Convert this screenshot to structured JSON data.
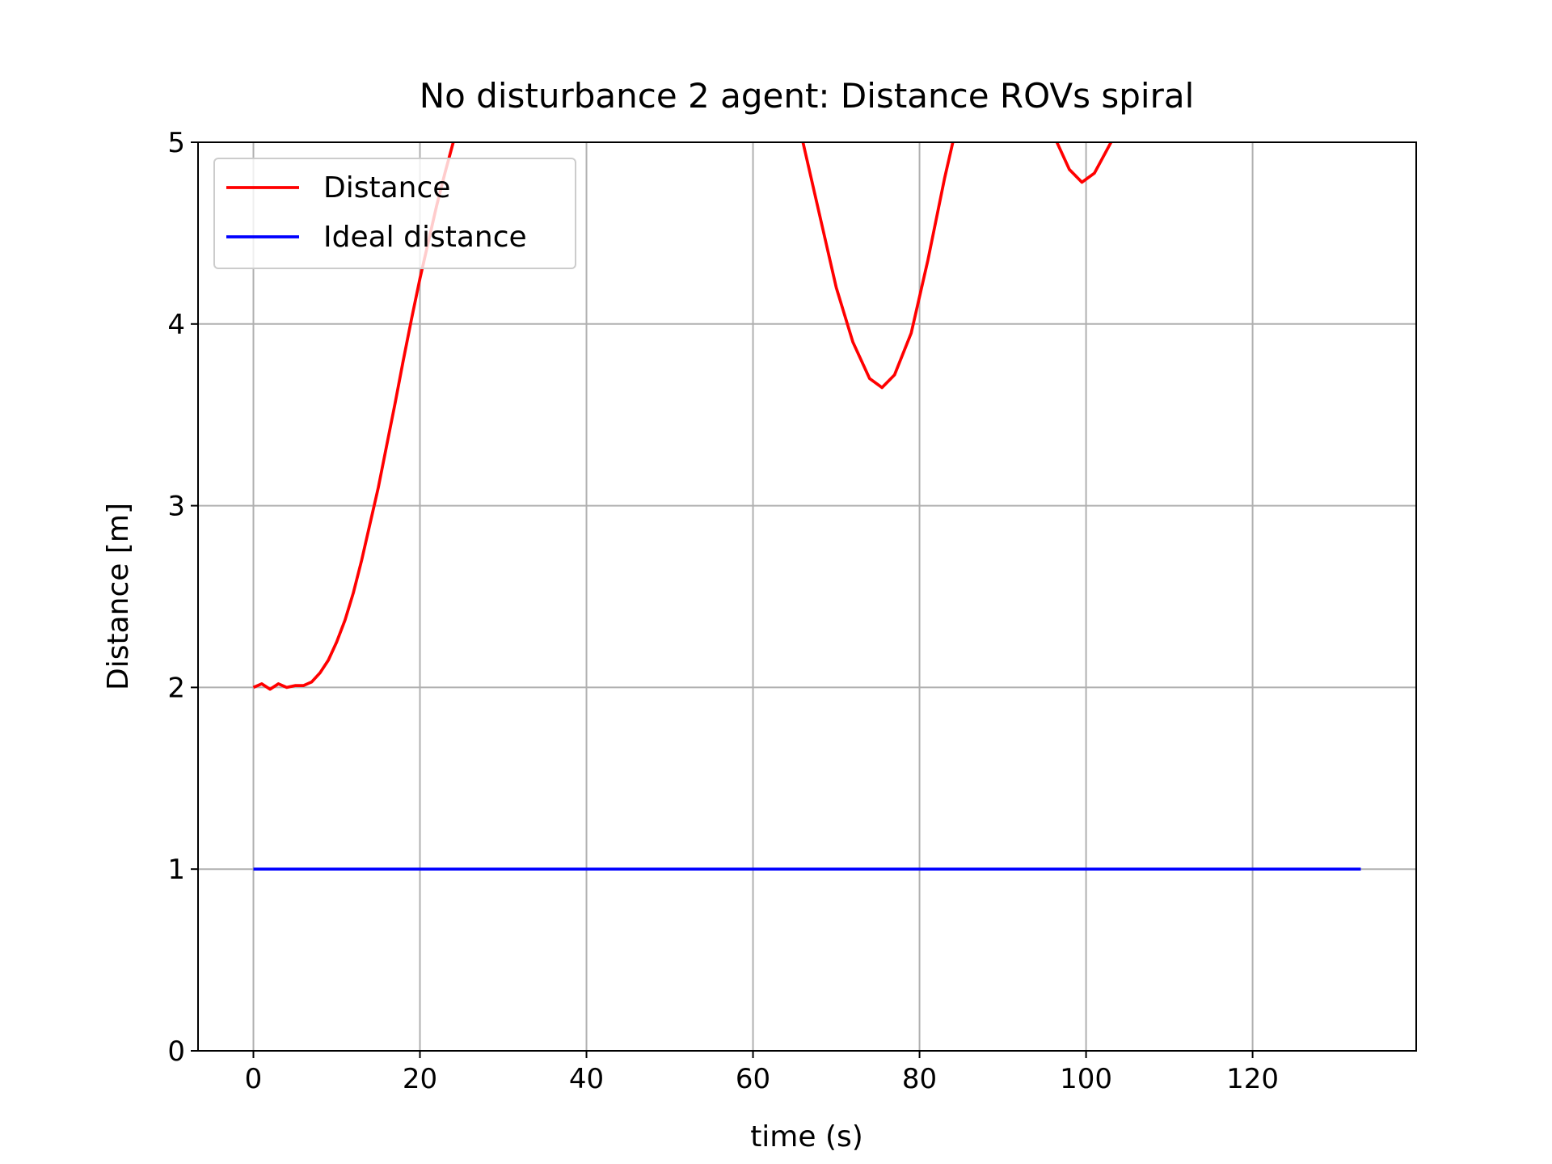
{
  "chart_data": {
    "type": "line",
    "title": "No disturbance 2 agent: Distance ROVs spiral",
    "xlabel": "time (s)",
    "ylabel": "Distance [m]",
    "xlim": [
      -6.65,
      139.65
    ],
    "ylim": [
      0,
      5
    ],
    "xticks": [
      0,
      20,
      40,
      60,
      80,
      100,
      120
    ],
    "yticks": [
      0,
      1,
      2,
      3,
      4,
      5
    ],
    "grid": true,
    "legend": "upper left",
    "series": [
      {
        "name": "Distance",
        "color": "#ff0000",
        "x": [
          0,
          1,
          2,
          3,
          4,
          5,
          6,
          7,
          8,
          9,
          10,
          11,
          12,
          13,
          14,
          15,
          16,
          17,
          18,
          19,
          20,
          21,
          22,
          23,
          24,
          45,
          66,
          68,
          70,
          72,
          74,
          75.5,
          77,
          79,
          81,
          83,
          84,
          90,
          96.5,
          98,
          99.5,
          101,
          103,
          118
        ],
        "values": [
          2.0,
          2.02,
          1.99,
          2.02,
          2.0,
          2.01,
          2.01,
          2.03,
          2.08,
          2.15,
          2.25,
          2.37,
          2.52,
          2.7,
          2.9,
          3.1,
          3.33,
          3.56,
          3.8,
          4.03,
          4.25,
          4.45,
          4.65,
          4.83,
          5.0,
          null,
          5.0,
          4.6,
          4.2,
          3.9,
          3.7,
          3.65,
          3.72,
          3.95,
          4.35,
          4.8,
          5.0,
          null,
          5.0,
          4.85,
          4.78,
          4.83,
          5.0,
          null
        ]
      },
      {
        "name": "Ideal distance",
        "color": "#0000ff",
        "x": [
          0,
          133
        ],
        "values": [
          1,
          1
        ]
      }
    ]
  }
}
